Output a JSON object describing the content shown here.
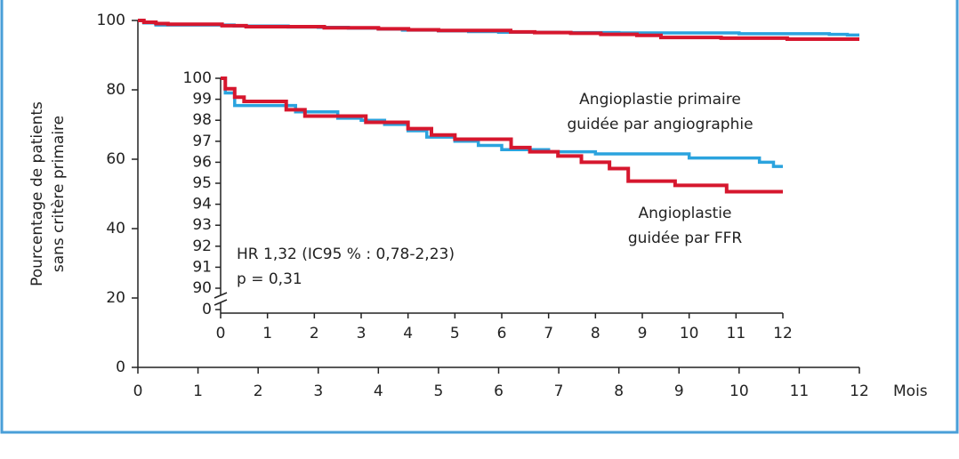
{
  "chart_data": {
    "type": "line",
    "y_label": [
      "Pourcentage de patients",
      "sans critère primaire"
    ],
    "x_label": "Mois",
    "xlim": [
      0,
      12
    ],
    "xticks": [
      0,
      1,
      2,
      3,
      4,
      5,
      6,
      7,
      8,
      9,
      10,
      11,
      12
    ],
    "ylim": [
      0,
      100
    ],
    "yticks": [
      0,
      20,
      40,
      60,
      80,
      100
    ],
    "step": true,
    "series": [
      {
        "label": [
          "Angioplastie primaire",
          "guidée par angiographie"
        ],
        "color": "#2ba3de",
        "x": [
          0,
          0.1,
          0.3,
          1.6,
          2.5,
          3.0,
          3.5,
          4.0,
          4.4,
          5.0,
          5.5,
          6.0,
          7.0,
          8.0,
          10.0,
          11.5,
          11.8,
          12.0
        ],
        "values": [
          100,
          99.3,
          98.7,
          98.4,
          98.1,
          98.0,
          97.8,
          97.5,
          97.2,
          97.0,
          96.8,
          96.6,
          96.5,
          96.4,
          96.2,
          96.0,
          95.8,
          95.8
        ]
      },
      {
        "label": [
          "Angioplastie",
          "guidée par FFR"
        ],
        "color": "#d6172e",
        "x": [
          0,
          0.1,
          0.3,
          0.5,
          1.4,
          1.8,
          2.4,
          3.1,
          4.0,
          4.5,
          5.0,
          6.2,
          6.6,
          7.2,
          7.7,
          8.3,
          8.7,
          9.7,
          10.8,
          12.0
        ],
        "values": [
          100,
          99.5,
          99.1,
          98.9,
          98.5,
          98.2,
          98.2,
          97.9,
          97.6,
          97.3,
          97.1,
          96.7,
          96.5,
          96.3,
          96.0,
          95.7,
          95.1,
          94.9,
          94.6,
          94.6
        ]
      }
    ],
    "inset": {
      "xlim": [
        0,
        12
      ],
      "xticks": [
        0,
        1,
        2,
        3,
        4,
        5,
        6,
        7,
        8,
        9,
        10,
        11,
        12
      ],
      "ylim": [
        90,
        100
      ],
      "yticks": [
        0,
        90,
        91,
        92,
        93,
        94,
        95,
        96,
        97,
        98,
        99,
        100
      ],
      "axis_break": true,
      "annotations": [
        "HR 1,32 (IC95 % : 0,78-2,23)",
        "p = 0,31"
      ]
    }
  }
}
